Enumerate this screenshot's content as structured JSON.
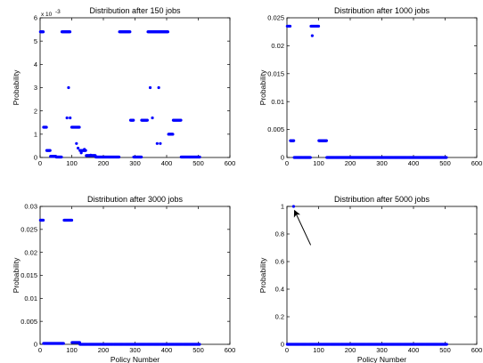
{
  "chart_data": [
    {
      "type": "scatter",
      "title": "Distribution after 150 jobs",
      "xlabel": "",
      "ylabel": "Probability",
      "xlim": [
        0,
        600
      ],
      "ylim": [
        0,
        6
      ],
      "y_multiplier_label": "x 10",
      "y_multiplier_exponent": "-3",
      "xticks": [
        "0",
        "100",
        "200",
        "300",
        "400",
        "500",
        "600"
      ],
      "yticks": [
        "0",
        "1",
        "2",
        "3",
        "4",
        "5",
        "6"
      ],
      "marker_color": "#0000ff",
      "segments": [
        {
          "x0": 1,
          "x1": 10,
          "y": 5.4
        },
        {
          "x0": 11,
          "x1": 20,
          "y": 1.3
        },
        {
          "x0": 21,
          "x1": 32,
          "y": 0.3
        },
        {
          "x0": 33,
          "x1": 50,
          "y": 0.05
        },
        {
          "x0": 51,
          "x1": 68,
          "y": 0.02
        },
        {
          "x0": 69,
          "x1": 95,
          "y": 5.4
        },
        {
          "x0": 100,
          "x1": 125,
          "y": 1.3
        },
        {
          "x0": 126,
          "x1": 145,
          "y": 0.3
        },
        {
          "x0": 146,
          "x1": 175,
          "y": 0.08
        },
        {
          "x0": 176,
          "x1": 250,
          "y": 0.02
        },
        {
          "x0": 251,
          "x1": 285,
          "y": 5.4
        },
        {
          "x0": 286,
          "x1": 295,
          "y": 1.6
        },
        {
          "x0": 296,
          "x1": 320,
          "y": 0.02
        },
        {
          "x0": 321,
          "x1": 340,
          "y": 1.6
        },
        {
          "x0": 341,
          "x1": 405,
          "y": 5.4
        },
        {
          "x0": 406,
          "x1": 420,
          "y": 1.0
        },
        {
          "x0": 421,
          "x1": 445,
          "y": 1.6
        },
        {
          "x0": 446,
          "x1": 505,
          "y": 0.02
        }
      ],
      "points": [
        {
          "x": 85,
          "y": 1.7
        },
        {
          "x": 90,
          "y": 3.0
        },
        {
          "x": 95,
          "y": 1.7
        },
        {
          "x": 115,
          "y": 0.6
        },
        {
          "x": 120,
          "y": 0.4
        },
        {
          "x": 130,
          "y": 0.2
        },
        {
          "x": 348,
          "y": 3.0
        },
        {
          "x": 355,
          "y": 1.7
        },
        {
          "x": 370,
          "y": 0.6
        },
        {
          "x": 375,
          "y": 3.0
        },
        {
          "x": 380,
          "y": 0.6
        },
        {
          "x": 160,
          "y": 0.1
        },
        {
          "x": 140,
          "y": 0.35
        }
      ]
    },
    {
      "type": "scatter",
      "title": "Distribution after 1000 jobs",
      "xlabel": "",
      "ylabel": "Probability",
      "xlim": [
        0,
        600
      ],
      "ylim": [
        0,
        0.025
      ],
      "xticks": [
        "0",
        "100",
        "200",
        "300",
        "400",
        "500",
        "600"
      ],
      "yticks": [
        "0",
        "0.005",
        "0.01",
        "0.015",
        "0.02",
        "0.025"
      ],
      "marker_color": "#0000ff",
      "segments": [
        {
          "x0": 1,
          "x1": 10,
          "y": 0.0235
        },
        {
          "x0": 11,
          "x1": 22,
          "y": 0.003
        },
        {
          "x0": 23,
          "x1": 75,
          "y": 0.0
        },
        {
          "x0": 76,
          "x1": 100,
          "y": 0.0235
        },
        {
          "x0": 101,
          "x1": 125,
          "y": 0.003
        },
        {
          "x0": 126,
          "x1": 505,
          "y": 0.0
        }
      ],
      "points": [
        {
          "x": 80,
          "y": 0.0218
        }
      ]
    },
    {
      "type": "scatter",
      "title": "Distribution after 3000 jobs",
      "xlabel": "Policy Number",
      "ylabel": "Probability",
      "xlim": [
        0,
        600
      ],
      "ylim": [
        0,
        0.03
      ],
      "xticks": [
        "0",
        "100",
        "200",
        "300",
        "400",
        "500",
        "600"
      ],
      "yticks": [
        "0",
        "0.005",
        "0.01",
        "0.015",
        "0.02",
        "0.025",
        "0.03"
      ],
      "marker_color": "#0000ff",
      "segments": [
        {
          "x0": 1,
          "x1": 10,
          "y": 0.027
        },
        {
          "x0": 11,
          "x1": 75,
          "y": 0.0002
        },
        {
          "x0": 76,
          "x1": 100,
          "y": 0.027
        },
        {
          "x0": 101,
          "x1": 125,
          "y": 0.0004
        },
        {
          "x0": 126,
          "x1": 505,
          "y": 0.0
        }
      ],
      "points": []
    },
    {
      "type": "scatter",
      "title": "Distribution after 5000 jobs",
      "xlabel": "Policy Number",
      "ylabel": "Probability",
      "xlim": [
        0,
        600
      ],
      "ylim": [
        0,
        1
      ],
      "xticks": [
        "0",
        "100",
        "200",
        "300",
        "400",
        "500",
        "600"
      ],
      "yticks": [
        "0",
        "0.2",
        "0.4",
        "0.6",
        "0.8",
        "1"
      ],
      "marker_color": "#0000ff",
      "segments": [
        {
          "x0": 1,
          "x1": 505,
          "y": 0.0
        }
      ],
      "points": [
        {
          "x": 21,
          "y": 1.0
        }
      ],
      "annotation": {
        "type": "arrow",
        "from": {
          "x": 75,
          "y": 0.72
        },
        "to": {
          "x": 24,
          "y": 0.97
        }
      }
    }
  ]
}
